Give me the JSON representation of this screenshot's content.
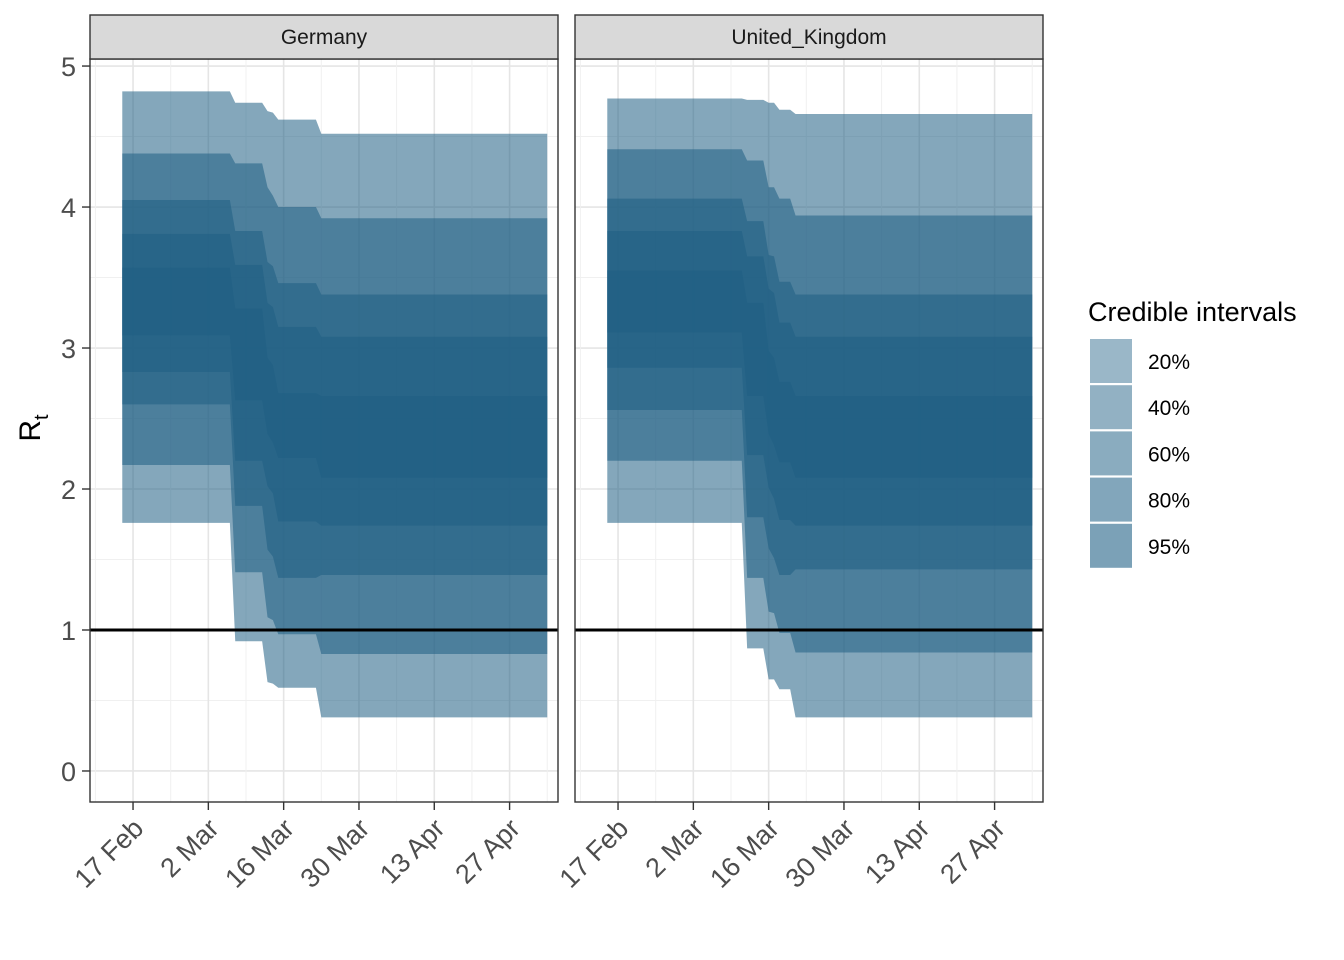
{
  "chart_data": {
    "type": "area",
    "ylabel": "R",
    "ylabel_subscript": "t",
    "ylim": [
      -0.22,
      5.05
    ],
    "yticks": [
      0,
      1,
      2,
      3,
      4,
      5
    ],
    "x_tick_labels": [
      "17 Feb",
      "2 Mar",
      "16 Mar",
      "30 Mar",
      "13 Apr",
      "27 Apr"
    ],
    "x_tick_dates": [
      "2020-02-17",
      "2020-03-02",
      "2020-03-16",
      "2020-03-30",
      "2020-04-13",
      "2020-04-27"
    ],
    "xlim": [
      "2020-02-09",
      "2020-05-06"
    ],
    "reference_line": {
      "y": 1,
      "color": "#000000"
    },
    "grid": true,
    "fill_color": "#1f5f84",
    "legend": {
      "title": "Credible intervals",
      "position": "right",
      "entries": [
        "20%",
        "40%",
        "60%",
        "80%",
        "95%"
      ]
    },
    "panels": [
      {
        "name": "Germany",
        "x": [
          "2020-02-15",
          "2020-03-06",
          "2020-03-07",
          "2020-03-12",
          "2020-03-13",
          "2020-03-14",
          "2020-03-15",
          "2020-03-16",
          "2020-03-22",
          "2020-03-23",
          "2020-05-04"
        ],
        "bands": [
          {
            "level": "95%",
            "lower": [
              1.76,
              1.76,
              0.92,
              0.92,
              0.63,
              0.62,
              0.59,
              0.59,
              0.59,
              0.38,
              0.38
            ],
            "upper": [
              4.82,
              4.82,
              4.74,
              4.74,
              4.68,
              4.67,
              4.62,
              4.62,
              4.62,
              4.52,
              4.52
            ]
          },
          {
            "level": "80%",
            "lower": [
              2.17,
              2.17,
              1.41,
              1.41,
              1.09,
              1.07,
              0.97,
              0.97,
              0.97,
              0.83,
              0.83
            ],
            "upper": [
              4.38,
              4.38,
              4.31,
              4.31,
              4.14,
              4.08,
              4.0,
              4.0,
              4.0,
              3.92,
              3.92
            ]
          },
          {
            "level": "60%",
            "lower": [
              2.6,
              2.6,
              1.88,
              1.88,
              1.57,
              1.52,
              1.37,
              1.37,
              1.37,
              1.39,
              1.39
            ],
            "upper": [
              4.05,
              4.05,
              3.83,
              3.83,
              3.61,
              3.58,
              3.46,
              3.46,
              3.46,
              3.38,
              3.38
            ]
          },
          {
            "level": "40%",
            "lower": [
              2.83,
              2.83,
              2.2,
              2.2,
              2.02,
              1.97,
              1.77,
              1.77,
              1.77,
              1.74,
              1.74
            ],
            "upper": [
              3.81,
              3.81,
              3.59,
              3.59,
              3.32,
              3.29,
              3.15,
              3.15,
              3.15,
              3.08,
              3.08
            ]
          },
          {
            "level": "20%",
            "lower": [
              3.09,
              3.09,
              2.63,
              2.63,
              2.39,
              2.33,
              2.22,
              2.22,
              2.22,
              2.08,
              2.08
            ],
            "upper": [
              3.57,
              3.57,
              3.28,
              3.28,
              2.93,
              2.88,
              2.68,
              2.68,
              2.68,
              2.66,
              2.66
            ]
          }
        ]
      },
      {
        "name": "United_Kingdom",
        "x": [
          "2020-02-15",
          "2020-03-11",
          "2020-03-12",
          "2020-03-15",
          "2020-03-16",
          "2020-03-17",
          "2020-03-18",
          "2020-03-19",
          "2020-03-20",
          "2020-03-21",
          "2020-05-04"
        ],
        "bands": [
          {
            "level": "95%",
            "lower": [
              1.76,
              1.76,
              0.87,
              0.87,
              0.65,
              0.65,
              0.58,
              0.58,
              0.58,
              0.38,
              0.38
            ],
            "upper": [
              4.77,
              4.77,
              4.76,
              4.76,
              4.74,
              4.74,
              4.69,
              4.69,
              4.69,
              4.66,
              4.66
            ]
          },
          {
            "level": "80%",
            "lower": [
              2.2,
              2.2,
              1.37,
              1.37,
              1.13,
              1.12,
              0.98,
              0.98,
              0.98,
              0.84,
              0.84
            ],
            "upper": [
              4.41,
              4.41,
              4.33,
              4.33,
              4.14,
              4.14,
              4.06,
              4.06,
              4.06,
              3.94,
              3.94
            ]
          },
          {
            "level": "60%",
            "lower": [
              2.56,
              2.56,
              1.8,
              1.8,
              1.58,
              1.51,
              1.39,
              1.39,
              1.39,
              1.43,
              1.43
            ],
            "upper": [
              4.06,
              4.06,
              3.9,
              3.9,
              3.66,
              3.65,
              3.47,
              3.47,
              3.47,
              3.38,
              3.38
            ]
          },
          {
            "level": "40%",
            "lower": [
              2.86,
              2.86,
              2.24,
              2.24,
              2.01,
              1.93,
              1.78,
              1.78,
              1.78,
              1.74,
              1.74
            ],
            "upper": [
              3.83,
              3.83,
              3.65,
              3.65,
              3.42,
              3.39,
              3.18,
              3.18,
              3.18,
              3.08,
              3.08
            ]
          },
          {
            "level": "20%",
            "lower": [
              3.11,
              3.11,
              2.66,
              2.66,
              2.39,
              2.31,
              2.19,
              2.19,
              2.19,
              2.08,
              2.08
            ],
            "upper": [
              3.55,
              3.55,
              3.32,
              3.32,
              2.98,
              2.93,
              2.76,
              2.76,
              2.76,
              2.66,
              2.66
            ]
          }
        ]
      }
    ]
  }
}
